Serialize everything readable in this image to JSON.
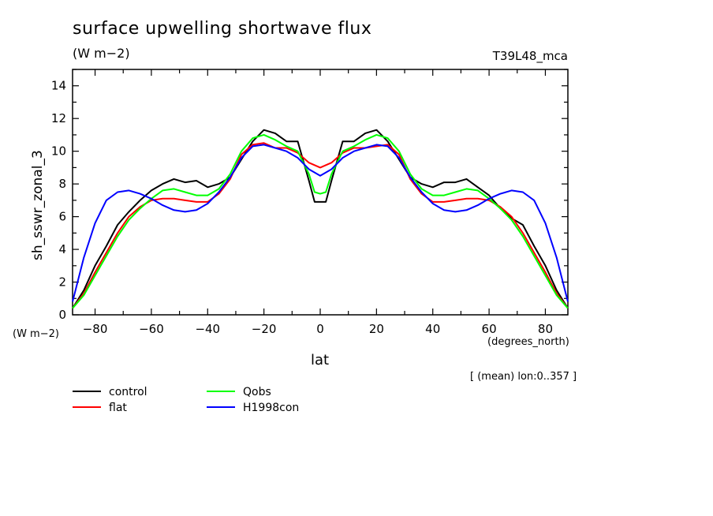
{
  "header": {
    "title": "surface upwelling shortwave flux",
    "units": "(W m−2)",
    "run_label": "T39L48_mca"
  },
  "axes": {
    "ylabel": "sh_sswr_zonal_3",
    "yunits": "(W m−2)",
    "xlabel": "lat",
    "xunits": "(degrees_north)"
  },
  "note": "[ (mean) lon:0..357 ]",
  "chart_data": {
    "type": "line",
    "title": "surface upwelling shortwave flux",
    "xlabel": "lat",
    "ylabel": "sh_sswr_zonal_3",
    "xlim": [
      -88,
      88
    ],
    "ylim": [
      0,
      15
    ],
    "xticks": [
      -80,
      -60,
      -40,
      -20,
      0,
      20,
      40,
      60,
      80
    ],
    "yticks": [
      0,
      2,
      4,
      6,
      8,
      10,
      12,
      14
    ],
    "grid": false,
    "legend_position": "bottom-left",
    "series": [
      {
        "name": "control",
        "color": "#000000",
        "x": [
          -88,
          -84,
          -80,
          -76,
          -72,
          -68,
          -64,
          -60,
          -56,
          -52,
          -48,
          -44,
          -40,
          -36,
          -32,
          -28,
          -24,
          -20,
          -16,
          -12,
          -8,
          -4,
          -2,
          0,
          2,
          4,
          8,
          12,
          16,
          20,
          24,
          28,
          32,
          36,
          40,
          44,
          48,
          52,
          56,
          60,
          64,
          68,
          72,
          76,
          80,
          84,
          88
        ],
        "y": [
          0.4,
          1.5,
          3.0,
          4.2,
          5.5,
          6.3,
          7.0,
          7.6,
          8.0,
          8.3,
          8.1,
          8.2,
          7.8,
          8.0,
          8.4,
          9.5,
          10.6,
          11.3,
          11.1,
          10.6,
          10.6,
          8.2,
          6.9,
          6.9,
          6.9,
          8.2,
          10.6,
          10.6,
          11.1,
          11.3,
          10.6,
          9.5,
          8.4,
          8.0,
          7.8,
          8.1,
          8.1,
          8.3,
          7.8,
          7.3,
          6.5,
          5.9,
          5.5,
          4.2,
          3.0,
          1.5,
          0.4
        ]
      },
      {
        "name": "flat",
        "color": "#ff0000",
        "x": [
          -88,
          -84,
          -80,
          -76,
          -72,
          -68,
          -64,
          -60,
          -56,
          -52,
          -48,
          -44,
          -40,
          -36,
          -32,
          -28,
          -24,
          -20,
          -16,
          -12,
          -8,
          -4,
          0,
          4,
          8,
          12,
          16,
          20,
          24,
          28,
          32,
          36,
          40,
          44,
          48,
          52,
          56,
          60,
          64,
          68,
          72,
          76,
          80,
          84,
          88
        ],
        "y": [
          0.4,
          1.3,
          2.6,
          3.8,
          5.0,
          6.0,
          6.6,
          7.0,
          7.1,
          7.1,
          7.0,
          6.9,
          6.9,
          7.4,
          8.3,
          9.8,
          10.4,
          10.5,
          10.2,
          10.2,
          9.9,
          9.3,
          9.0,
          9.3,
          9.9,
          10.2,
          10.2,
          10.3,
          10.4,
          9.8,
          8.3,
          7.4,
          6.9,
          6.9,
          7.0,
          7.1,
          7.1,
          7.0,
          6.6,
          6.0,
          5.0,
          3.8,
          2.6,
          1.3,
          0.4
        ]
      },
      {
        "name": "Qobs",
        "color": "#00ff00",
        "x": [
          -88,
          -84,
          -80,
          -76,
          -72,
          -68,
          -64,
          -60,
          -56,
          -52,
          -48,
          -44,
          -40,
          -36,
          -32,
          -28,
          -24,
          -20,
          -16,
          -12,
          -8,
          -4,
          -2,
          0,
          2,
          4,
          8,
          12,
          16,
          20,
          24,
          28,
          32,
          36,
          40,
          44,
          48,
          52,
          56,
          60,
          64,
          68,
          72,
          76,
          80,
          84,
          88
        ],
        "y": [
          0.4,
          1.2,
          2.4,
          3.6,
          4.8,
          5.8,
          6.5,
          7.1,
          7.6,
          7.7,
          7.5,
          7.3,
          7.3,
          7.7,
          8.6,
          10.0,
          10.8,
          11.0,
          10.7,
          10.3,
          10.0,
          8.6,
          7.5,
          7.4,
          7.5,
          8.6,
          10.0,
          10.3,
          10.7,
          11.0,
          10.8,
          10.0,
          8.6,
          7.7,
          7.3,
          7.3,
          7.5,
          7.7,
          7.6,
          7.1,
          6.5,
          5.8,
          4.8,
          3.6,
          2.4,
          1.2,
          0.4
        ]
      },
      {
        "name": "H1998con",
        "color": "#0000ff",
        "x": [
          -88,
          -84,
          -80,
          -76,
          -72,
          -68,
          -64,
          -60,
          -56,
          -52,
          -48,
          -44,
          -40,
          -36,
          -32,
          -28,
          -24,
          -20,
          -16,
          -12,
          -8,
          -4,
          0,
          4,
          8,
          12,
          16,
          20,
          24,
          28,
          32,
          36,
          40,
          44,
          48,
          52,
          56,
          60,
          64,
          68,
          72,
          76,
          80,
          84,
          88
        ],
        "y": [
          0.8,
          3.5,
          5.6,
          7.0,
          7.5,
          7.6,
          7.4,
          7.1,
          6.7,
          6.4,
          6.3,
          6.4,
          6.8,
          7.5,
          8.4,
          9.6,
          10.3,
          10.4,
          10.2,
          10.0,
          9.6,
          8.9,
          8.5,
          8.9,
          9.6,
          10.0,
          10.2,
          10.4,
          10.3,
          9.6,
          8.4,
          7.5,
          6.8,
          6.4,
          6.3,
          6.4,
          6.7,
          7.1,
          7.4,
          7.6,
          7.5,
          7.0,
          5.6,
          3.5,
          0.8
        ]
      }
    ]
  }
}
